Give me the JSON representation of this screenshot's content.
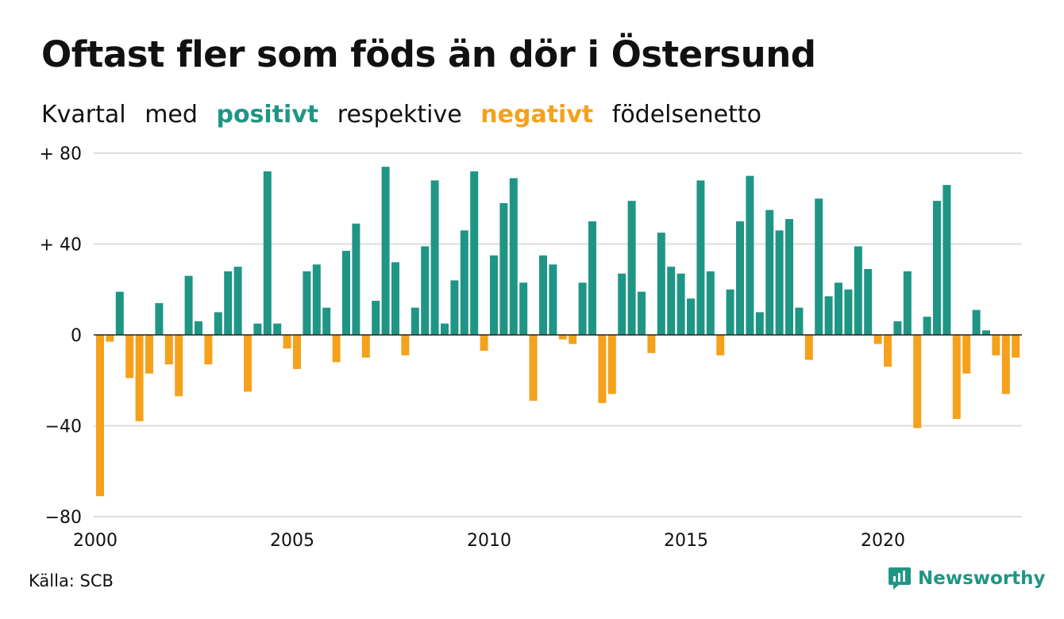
{
  "title": "Oftast fler som föds än dör i Östersund",
  "subtitle": {
    "w1": "Kvartal",
    "w2": "med",
    "positive_word": "positivt",
    "w3": "respektive",
    "negative_word": "negativt",
    "w4": "födelsenetto"
  },
  "source": "Källa: SCB",
  "brand": "Newsworthy",
  "colors": {
    "positive": "#1f9685",
    "negative": "#f5a11c",
    "grid": "#dddddd",
    "brand": "#1f9685"
  },
  "chart_data": {
    "type": "bar",
    "x_start": "2000 Q1",
    "x_step": "quarter",
    "ylim": [
      -80,
      80
    ],
    "y_ticks": [
      {
        "value": 80,
        "label": "+ 80"
      },
      {
        "value": 40,
        "label": "+ 40"
      },
      {
        "value": 0,
        "label": "0"
      },
      {
        "value": -40,
        "label": "−40"
      },
      {
        "value": -80,
        "label": "−80"
      }
    ],
    "x_ticks": [
      {
        "year": 2000,
        "label": "2000"
      },
      {
        "year": 2005,
        "label": "2005"
      },
      {
        "year": 2010,
        "label": "2010"
      },
      {
        "year": 2015,
        "label": "2015"
      },
      {
        "year": 2020,
        "label": "2020"
      }
    ],
    "values": [
      -71,
      -3,
      19,
      -19,
      -38,
      -17,
      14,
      -13,
      -27,
      26,
      6,
      -13,
      10,
      28,
      30,
      -25,
      5,
      72,
      5,
      -6,
      -15,
      28,
      31,
      12,
      -12,
      37,
      49,
      -10,
      15,
      74,
      32,
      -9,
      12,
      39,
      68,
      5,
      24,
      46,
      72,
      -7,
      35,
      58,
      69,
      23,
      -29,
      35,
      31,
      -2,
      -4,
      23,
      50,
      -30,
      -26,
      27,
      59,
      19,
      -8,
      45,
      30,
      27,
      16,
      68,
      28,
      -9,
      20,
      50,
      70,
      10,
      55,
      46,
      51,
      12,
      -11,
      60,
      17,
      23,
      20,
      39,
      29,
      -4,
      -14,
      6,
      28,
      -41,
      8,
      59,
      66,
      -37,
      -17,
      11,
      2,
      -9,
      -26,
      -10
    ]
  }
}
